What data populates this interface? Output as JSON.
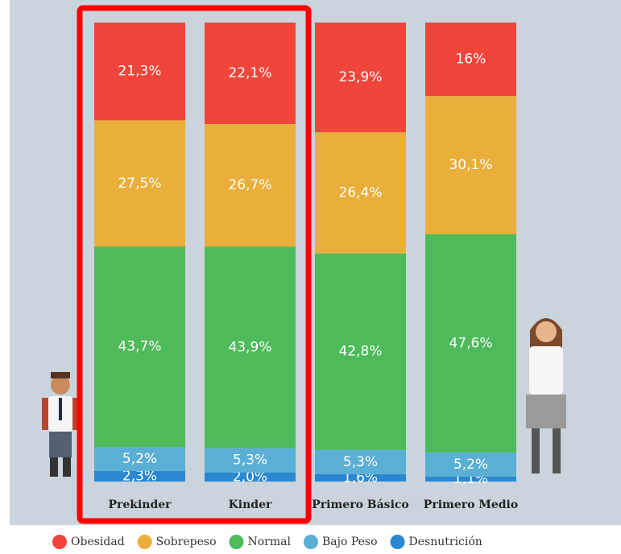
{
  "chart_data": {
    "type": "stacked-bar",
    "categories": [
      "Prekinder",
      "Kinder",
      "Primero Básico",
      "Primero Medio"
    ],
    "ylim": [
      0,
      100
    ],
    "legend": "bottom",
    "series": [
      {
        "name": "Obesidad",
        "color": "#f0453a",
        "values": [
          21.3,
          22.1,
          23.9,
          16
        ],
        "value_labels": [
          "21,3%",
          "22,1%",
          "23,9%",
          "16%"
        ]
      },
      {
        "name": "Sobrepeso",
        "color": "#eaae3b",
        "values": [
          27.5,
          26.7,
          26.4,
          30.1
        ],
        "value_labels": [
          "27,5%",
          "26,7%",
          "26,4%",
          "30,1%"
        ]
      },
      {
        "name": "Normal",
        "color": "#4fba5a",
        "values": [
          43.7,
          43.9,
          42.8,
          47.6
        ],
        "value_labels": [
          "43,7%",
          "43,9%",
          "42,8%",
          "47,6%"
        ]
      },
      {
        "name": "Bajo Peso",
        "color": "#5aafd5",
        "values": [
          5.2,
          5.3,
          5.3,
          5.2
        ],
        "value_labels": [
          "5,2%",
          "5,3%",
          "5,3%",
          "5,2%"
        ]
      },
      {
        "name": "Desnutrición",
        "color": "#2a87d0",
        "values": [
          2.3,
          2.0,
          1.6,
          1.1
        ],
        "value_labels": [
          "2,3%",
          "2,0%",
          "1,6%",
          "1,1%"
        ]
      }
    ]
  }
}
